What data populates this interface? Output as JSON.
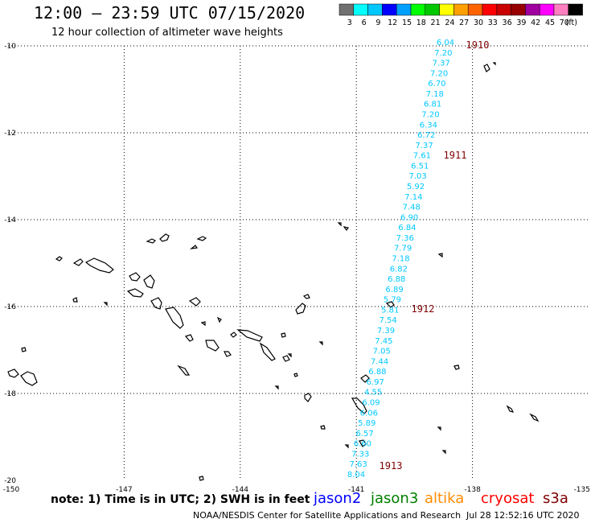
{
  "header": {
    "title": "12:00 – 23:59 UTC 07/15/2020",
    "subtitle": "12 hour collection of altimeter wave heights"
  },
  "legend": {
    "colors": [
      "#707070",
      "#00ffff",
      "#00c8ff",
      "#0000ff",
      "#00a0ff",
      "#00ff00",
      "#00c800",
      "#ffff00",
      "#ffa000",
      "#ff6400",
      "#ff0000",
      "#c80000",
      "#960000",
      "#a000a0",
      "#ff00ff",
      "#ff80c0",
      "#000000"
    ],
    "labels": [
      "3",
      "6",
      "9",
      "12",
      "15",
      "18",
      "21",
      "24",
      "27",
      "30",
      "33",
      "36",
      "39",
      "42",
      "45",
      "70",
      "(ft)"
    ]
  },
  "map": {
    "lat_range": [
      -20,
      -10
    ],
    "lon_range": [
      -150,
      -135
    ],
    "lat_labels": [
      "-10",
      "-12",
      "-14",
      "-16",
      "-18",
      "-20"
    ],
    "lon_labels": [
      "-150",
      "-147",
      "-144",
      "-141",
      "-138",
      "-135"
    ],
    "grid": "dotted"
  },
  "track": {
    "color": "#00c8ff",
    "values": [
      "6.04",
      "7.20",
      "7.37",
      "7.20",
      "6.70",
      "7.18",
      "6.81",
      "7.20",
      "6.34",
      "6.72",
      "7.37",
      "7.61",
      "6.51",
      "7.03",
      "5.92",
      "7.14",
      "7.48",
      "6.90",
      "6.84",
      "7.36",
      "7.79",
      "7.18",
      "6.82",
      "6.88",
      "6.89",
      "5.79",
      "5.81",
      "7.54",
      "7.39",
      "7.45",
      "7.05",
      "7.44",
      "6.88",
      "6.97",
      "4.55",
      "6.09",
      "6.06",
      "5.89",
      "6.57",
      "6.60",
      "7.33",
      "7.63",
      "8.04"
    ],
    "time_labels": [
      "1910",
      "1911",
      "1912",
      "1913"
    ],
    "time_color": "#800000"
  },
  "footer": {
    "note": "note: 1) Time is in UTC; 2) SWH is in feet",
    "missions": [
      {
        "name": "jason2",
        "color": "#0000ff"
      },
      {
        "name": "jason3",
        "color": "#008000"
      },
      {
        "name": "altika",
        "color": "#ff8c00"
      },
      {
        "name": "cryosat",
        "color": "#ff0000"
      },
      {
        "name": "s3a",
        "color": "#800000"
      }
    ],
    "credit": "NOAA/NESDIS Center for Satellite Applications and Research",
    "timestamp": "Jul 28 12:52:16 UTC 2020"
  }
}
